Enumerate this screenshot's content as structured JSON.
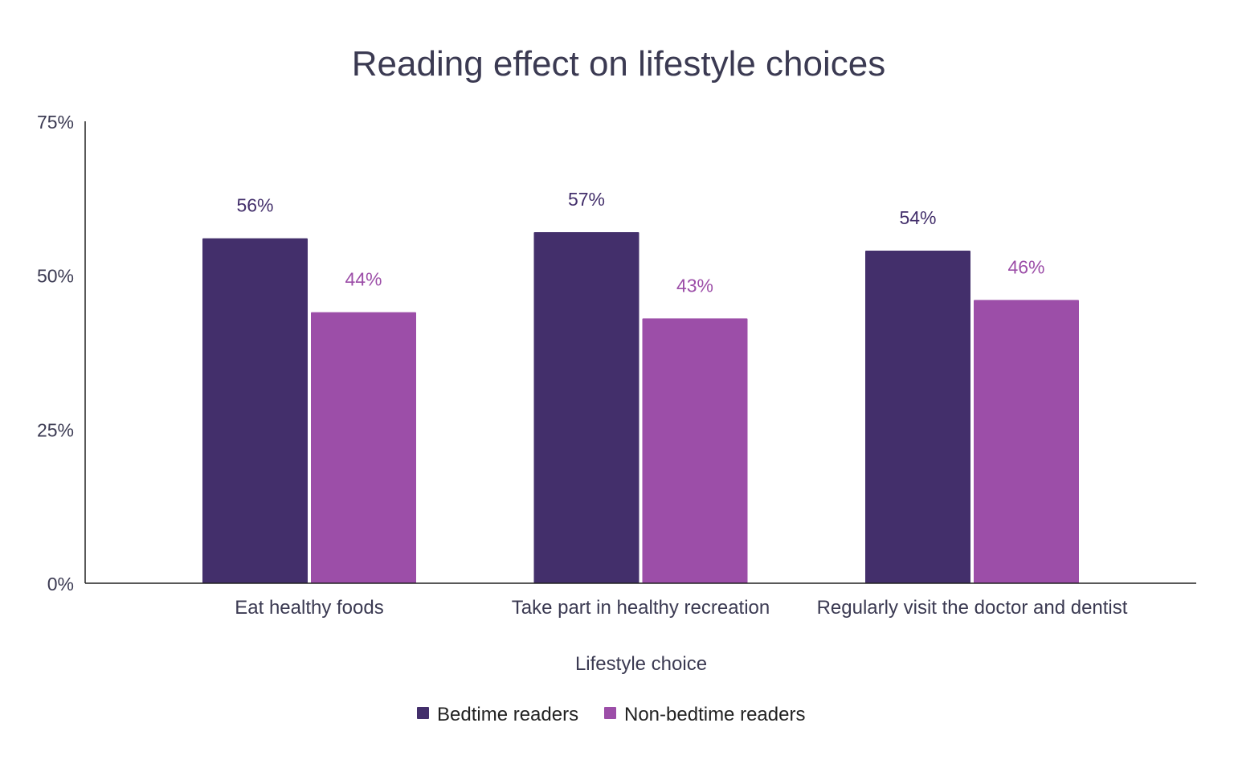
{
  "chart_data": {
    "type": "bar",
    "title": "Reading effect on lifestyle choices",
    "xlabel": "Lifestyle choice",
    "ylabel": "",
    "ylim": [
      0,
      75
    ],
    "yticks": [
      "0%",
      "25%",
      "50%",
      "75%"
    ],
    "ytick_values": [
      0,
      25,
      50,
      75
    ],
    "grid": false,
    "legend_position": "bottom",
    "categories": [
      "Eat healthy foods",
      "Take part in healthy recreation",
      "Regularly visit the doctor and dentist"
    ],
    "series": [
      {
        "name": "Bedtime readers",
        "values": [
          56,
          57,
          54
        ],
        "labels": [
          "56%",
          "57%",
          "54%"
        ],
        "color": "#432f6b"
      },
      {
        "name": "Non-bedtime readers",
        "values": [
          44,
          43,
          46
        ],
        "labels": [
          "44%",
          "43%",
          "46%"
        ],
        "color": "#9c4ea8"
      }
    ]
  }
}
